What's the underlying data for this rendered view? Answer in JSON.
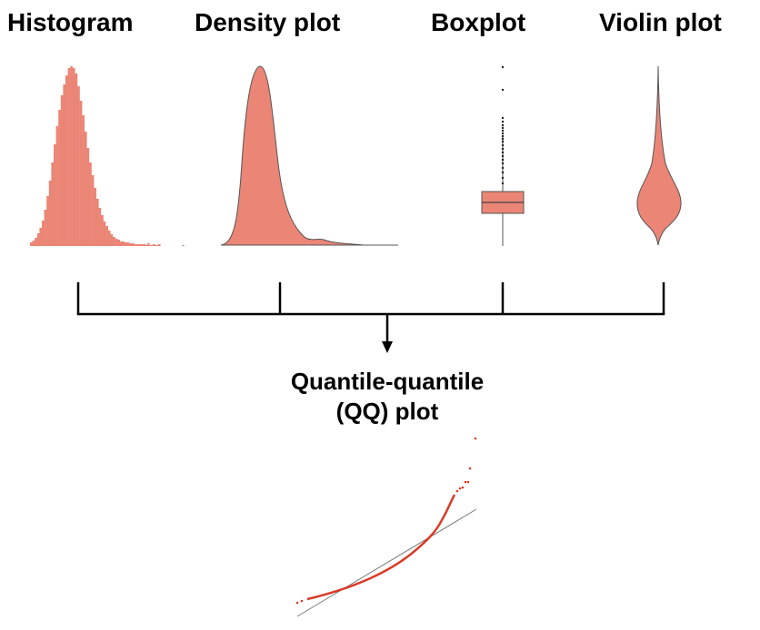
{
  "titles": {
    "histogram": "Histogram",
    "density": "Density plot",
    "boxplot": "Boxplot",
    "violin": "Violin plot",
    "qq_line1": "Quantile-quantile",
    "qq_line2": "(QQ) plot"
  },
  "colors": {
    "fill": "#eb8576",
    "outline": "#555555",
    "qq_points": "#d93a26",
    "reference_line": "#7a7a7a",
    "connector": "#000000"
  },
  "icons": {
    "arrow": "arrow-down-icon"
  }
}
